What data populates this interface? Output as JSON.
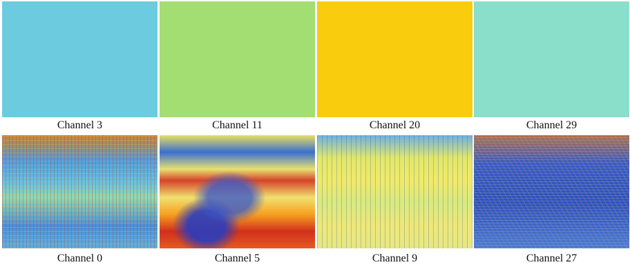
{
  "rows": [
    [
      {
        "label": "Channel 3",
        "color": "#6ccbdf"
      },
      {
        "label": "Channel 11",
        "color": "#a3de72"
      },
      {
        "label": "Channel 20",
        "color": "#f9cd0e"
      },
      {
        "label": "Channel 29",
        "color": "#8adfcb"
      }
    ],
    [
      {
        "label": "Channel 0"
      },
      {
        "label": "Channel 5"
      },
      {
        "label": "Channel 9"
      },
      {
        "label": "Channel 27"
      }
    ]
  ]
}
